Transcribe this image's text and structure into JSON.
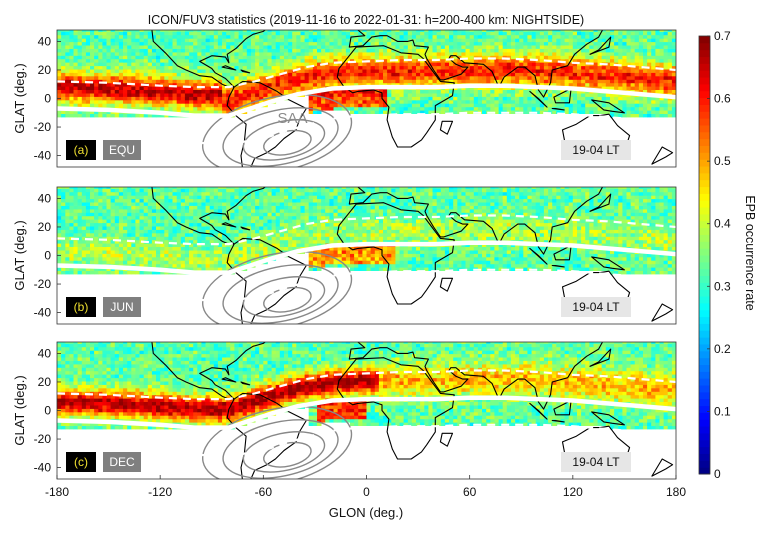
{
  "title": "ICON/FUV3 statistics (2019-11-16 to 2022-01-31: h=200-400 km: NIGHTSIDE)",
  "chart_data": {
    "type": "heatmap",
    "title": "ICON/FUV3 statistics (2019-11-16 to 2022-01-31: h=200-400 km: NIGHTSIDE)",
    "xlabel": "GLON (deg.)",
    "ylabel": "GLAT (deg.)",
    "xlim": [
      -180,
      180
    ],
    "ylim": [
      -48,
      48
    ],
    "xticks": [
      -180,
      -120,
      -60,
      0,
      60,
      120,
      180
    ],
    "yticks": [
      -40,
      -20,
      0,
      20,
      40
    ],
    "xtick_labels": [
      "-180",
      "-120",
      "-60",
      "0",
      "60",
      "120",
      "180"
    ],
    "ytick_labels": [
      "-40",
      "-20",
      "0",
      "20",
      "40"
    ],
    "colorbar": {
      "label": "EPB occurrence rate",
      "range": [
        0,
        0.7
      ],
      "ticks": [
        0,
        0.1,
        0.2,
        0.3,
        0.4,
        0.5,
        0.6,
        0.7
      ],
      "tick_labels": [
        "0",
        "0.1",
        "0.2",
        "0.3",
        "0.4",
        "0.5",
        "0.6",
        "0.7"
      ],
      "colormap": "jet"
    },
    "data_coverage_lat": [
      -13,
      47
    ],
    "magnetic_equator_solid": [
      [
        -180,
        -7
      ],
      [
        -150,
        -8
      ],
      [
        -120,
        -10
      ],
      [
        -100,
        -12
      ],
      [
        -80,
        -12
      ],
      [
        -70,
        -8
      ],
      [
        -55,
        -2
      ],
      [
        -40,
        3
      ],
      [
        -20,
        7
      ],
      [
        0,
        8
      ],
      [
        20,
        8
      ],
      [
        40,
        8
      ],
      [
        60,
        9
      ],
      [
        80,
        9
      ],
      [
        100,
        8
      ],
      [
        120,
        7
      ],
      [
        140,
        5
      ],
      [
        160,
        3
      ],
      [
        180,
        1
      ]
    ],
    "dashed_lines": [
      [
        [
          -180,
          12
        ],
        [
          -150,
          11
        ],
        [
          -120,
          9
        ],
        [
          -100,
          8
        ],
        [
          -80,
          8
        ],
        [
          -65,
          12
        ],
        [
          -50,
          17
        ],
        [
          -35,
          22
        ],
        [
          -20,
          25
        ],
        [
          0,
          26
        ],
        [
          20,
          27
        ],
        [
          40,
          27
        ],
        [
          60,
          28
        ],
        [
          80,
          28
        ],
        [
          100,
          27
        ],
        [
          120,
          25
        ],
        [
          140,
          24
        ],
        [
          160,
          22
        ],
        [
          180,
          20
        ]
      ],
      [
        [
          -180,
          -26
        ],
        [
          -150,
          -27
        ],
        [
          -120,
          -29
        ],
        [
          -100,
          -31
        ],
        [
          -80,
          -32
        ],
        [
          -60,
          -28
        ],
        [
          -45,
          -22
        ],
        [
          -30,
          -17
        ],
        [
          -15,
          -13
        ],
        [
          0,
          -12
        ],
        [
          20,
          -11
        ],
        [
          40,
          -11
        ],
        [
          60,
          -10
        ],
        [
          80,
          -10
        ],
        [
          100,
          -10
        ],
        [
          120,
          -11
        ],
        [
          140,
          -13
        ],
        [
          160,
          -15
        ],
        [
          180,
          -17
        ]
      ]
    ],
    "anomaly_label": "SAA",
    "panels": [
      {
        "tag": "(a)",
        "label": "EQU",
        "lt": "19-04 LT",
        "mean_rate_equatorial_band": 0.6
      },
      {
        "tag": "(b)",
        "label": "JUN",
        "lt": "19-04 LT",
        "mean_rate_equatorial_band": 0.35
      },
      {
        "tag": "(c)",
        "label": "DEC",
        "lt": "19-04 LT",
        "mean_rate_equatorial_band": 0.58
      }
    ],
    "grid": false
  }
}
